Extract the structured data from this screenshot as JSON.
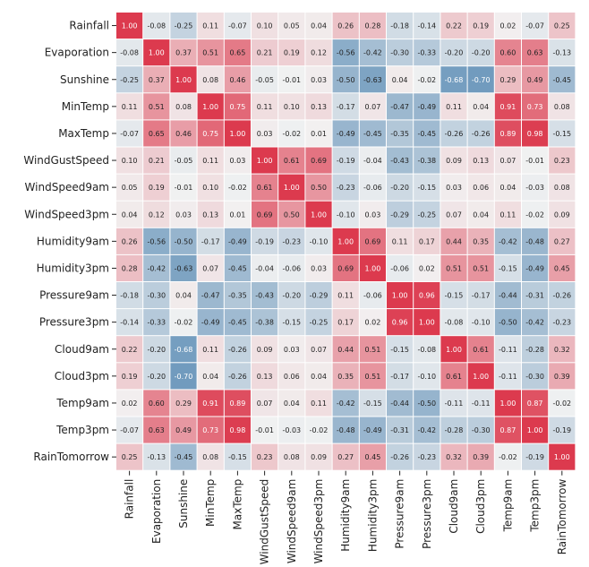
{
  "chart_data": {
    "type": "heatmap",
    "title": "",
    "xlabel": "",
    "ylabel": "",
    "labels": [
      "Rainfall",
      "Evaporation",
      "Sunshine",
      "MinTemp",
      "MaxTemp",
      "WindGustSpeed",
      "WindSpeed9am",
      "WindSpeed3pm",
      "Humidity9am",
      "Humidity3pm",
      "Pressure9am",
      "Pressure3pm",
      "Cloud9am",
      "Cloud3pm",
      "Temp9am",
      "Temp3pm",
      "RainTomorrow"
    ],
    "values": [
      [
        "1.00",
        "-0.08",
        "-0.25",
        "0.11",
        "-0.07",
        "0.10",
        "0.05",
        "0.04",
        "0.26",
        "0.28",
        "-0.18",
        "-0.14",
        "0.22",
        "0.19",
        "0.02",
        "-0.07",
        "0.25"
      ],
      [
        "-0.08",
        "1.00",
        "0.37",
        "0.51",
        "0.65",
        "0.21",
        "0.19",
        "0.12",
        "-0.56",
        "-0.42",
        "-0.30",
        "-0.33",
        "-0.20",
        "-0.20",
        "0.60",
        "0.63",
        "-0.13"
      ],
      [
        "-0.25",
        "0.37",
        "1.00",
        "0.08",
        "0.46",
        "-0.05",
        "-0.01",
        "0.03",
        "-0.50",
        "-0.63",
        "0.04",
        "-0.02",
        "-0.68",
        "-0.70",
        "0.29",
        "0.49",
        "-0.45"
      ],
      [
        "0.11",
        "0.51",
        "0.08",
        "1.00",
        "0.75",
        "0.11",
        "0.10",
        "0.13",
        "-0.17",
        "0.07",
        "-0.47",
        "-0.49",
        "0.11",
        "0.04",
        "0.91",
        "0.73",
        "0.08"
      ],
      [
        "-0.07",
        "0.65",
        "0.46",
        "0.75",
        "1.00",
        "0.03",
        "-0.02",
        "0.01",
        "-0.49",
        "-0.45",
        "-0.35",
        "-0.45",
        "-0.26",
        "-0.26",
        "0.89",
        "0.98",
        "-0.15"
      ],
      [
        "0.10",
        "0.21",
        "-0.05",
        "0.11",
        "0.03",
        "1.00",
        "0.61",
        "0.69",
        "-0.19",
        "-0.04",
        "-0.43",
        "-0.38",
        "0.09",
        "0.13",
        "0.07",
        "-0.01",
        "0.23"
      ],
      [
        "0.05",
        "0.19",
        "-0.01",
        "0.10",
        "-0.02",
        "0.61",
        "1.00",
        "0.50",
        "-0.23",
        "-0.06",
        "-0.20",
        "-0.15",
        "0.03",
        "0.06",
        "0.04",
        "-0.03",
        "0.08"
      ],
      [
        "0.04",
        "0.12",
        "0.03",
        "0.13",
        "0.01",
        "0.69",
        "0.50",
        "1.00",
        "-0.10",
        "0.03",
        "-0.29",
        "-0.25",
        "0.07",
        "0.04",
        "0.11",
        "-0.02",
        "0.09"
      ],
      [
        "0.26",
        "-0.56",
        "-0.50",
        "-0.17",
        "-0.49",
        "-0.19",
        "-0.23",
        "-0.10",
        "1.00",
        "0.69",
        "0.11",
        "0.17",
        "0.44",
        "0.35",
        "-0.42",
        "-0.48",
        "0.27"
      ],
      [
        "0.28",
        "-0.42",
        "-0.63",
        "0.07",
        "-0.45",
        "-0.04",
        "-0.06",
        "0.03",
        "0.69",
        "1.00",
        "-0.06",
        "0.02",
        "0.51",
        "0.51",
        "-0.15",
        "-0.49",
        "0.45"
      ],
      [
        "-0.18",
        "-0.30",
        "0.04",
        "-0.47",
        "-0.35",
        "-0.43",
        "-0.20",
        "-0.29",
        "0.11",
        "-0.06",
        "1.00",
        "0.96",
        "-0.15",
        "-0.17",
        "-0.44",
        "-0.31",
        "-0.26"
      ],
      [
        "-0.14",
        "-0.33",
        "-0.02",
        "-0.49",
        "-0.45",
        "-0.38",
        "-0.15",
        "-0.25",
        "0.17",
        "0.02",
        "0.96",
        "1.00",
        "-0.08",
        "-0.10",
        "-0.50",
        "-0.42",
        "-0.23"
      ],
      [
        "0.22",
        "-0.20",
        "-0.68",
        "0.11",
        "-0.26",
        "0.09",
        "0.03",
        "0.07",
        "0.44",
        "0.51",
        "-0.15",
        "-0.08",
        "1.00",
        "0.61",
        "-0.11",
        "-0.28",
        "0.32"
      ],
      [
        "0.19",
        "-0.20",
        "-0.70",
        "0.04",
        "-0.26",
        "0.13",
        "0.06",
        "0.04",
        "0.35",
        "0.51",
        "-0.17",
        "-0.10",
        "0.61",
        "1.00",
        "-0.11",
        "-0.30",
        "0.39"
      ],
      [
        "0.02",
        "0.60",
        "0.29",
        "0.91",
        "0.89",
        "0.07",
        "0.04",
        "0.11",
        "-0.42",
        "-0.15",
        "-0.44",
        "-0.50",
        "-0.11",
        "-0.11",
        "1.00",
        "0.87",
        "-0.02"
      ],
      [
        "-0.07",
        "0.63",
        "0.49",
        "0.73",
        "0.98",
        "-0.01",
        "-0.03",
        "-0.02",
        "-0.48",
        "-0.49",
        "-0.31",
        "-0.42",
        "-0.28",
        "-0.30",
        "0.87",
        "1.00",
        "-0.19"
      ],
      [
        "0.25",
        "-0.13",
        "-0.45",
        "0.08",
        "-0.15",
        "0.23",
        "0.08",
        "0.09",
        "0.27",
        "0.45",
        "-0.26",
        "-0.23",
        "0.32",
        "0.39",
        "-0.02",
        "-0.19",
        "1.00"
      ]
    ],
    "vmin": -1,
    "vmax": 1,
    "colormap": "diverging blue-white-red",
    "colors": {
      "negative": "#3a76a8",
      "neutral": "#f2f2f2",
      "positive": "#dc3a4e"
    },
    "annotated": true,
    "colorbar": false
  }
}
